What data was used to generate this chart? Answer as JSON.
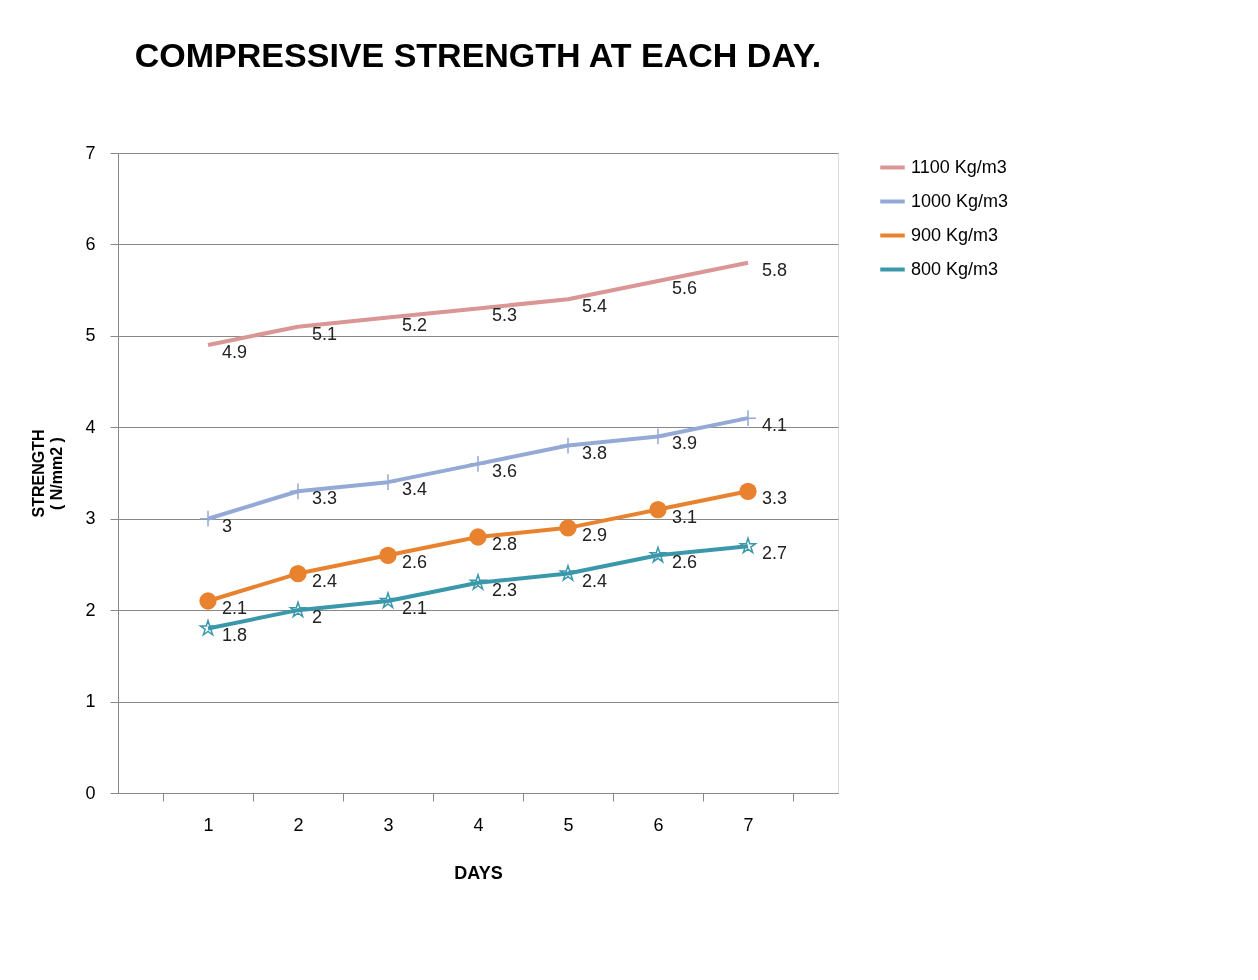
{
  "chart_data": {
    "type": "line",
    "title": "COMPRESSIVE STRENGTH AT EACH DAY.",
    "xlabel": "DAYS",
    "ylabel": "STRENGTH\n( N/mm2 )",
    "categories": [
      "1",
      "2",
      "3",
      "4",
      "5",
      "6",
      "7"
    ],
    "series": [
      {
        "name": "1100 Kg/m3",
        "color": "#d99694",
        "marker": "none",
        "values": [
          4.9,
          5.1,
          5.2,
          5.3,
          5.4,
          5.6,
          5.8
        ]
      },
      {
        "name": "1000 Kg/m3",
        "color": "#95a9d6",
        "marker": "cross",
        "values": [
          3,
          3.3,
          3.4,
          3.6,
          3.8,
          3.9,
          4.1
        ]
      },
      {
        "name": "900 Kg/m3",
        "color": "#e8822e",
        "marker": "circle",
        "values": [
          2.1,
          2.4,
          2.6,
          2.8,
          2.9,
          3.1,
          3.3
        ]
      },
      {
        "name": "800 Kg/m3",
        "color": "#3a98aa",
        "marker": "star",
        "values": [
          1.8,
          2,
          2.1,
          2.3,
          2.4,
          2.6,
          2.7
        ]
      }
    ],
    "ylim": [
      0,
      7
    ],
    "yticks": [
      0,
      1,
      2,
      3,
      4,
      5,
      6,
      7
    ],
    "grid": "y",
    "legend": "right",
    "data_labels": true,
    "line_style": "solid"
  }
}
